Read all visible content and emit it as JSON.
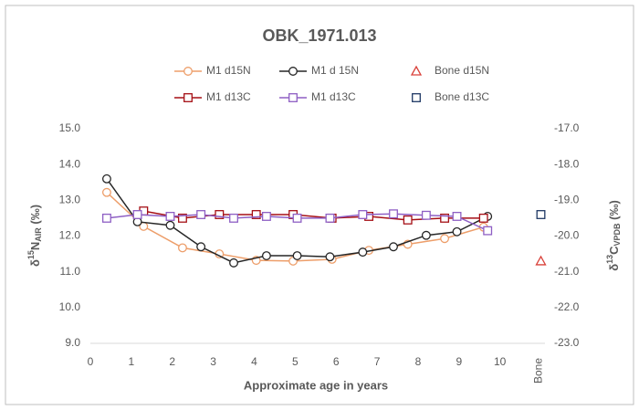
{
  "chart_data": {
    "type": "line",
    "title": "OBK_1971.013",
    "x_label": "Approximate age in years",
    "y_label": {
      "prefix": "δ",
      "sup": "15",
      "main": "N",
      "sub": "AIR",
      "suffix": " (‰)"
    },
    "y2_label": {
      "prefix": "δ",
      "sup": "13",
      "main": "C",
      "sub": "VPDB",
      "suffix": " (‰)"
    },
    "xlim": [
      0,
      11.1
    ],
    "xticks": [
      0,
      1,
      2,
      3,
      4,
      5,
      6,
      7,
      8,
      9,
      10,
      {
        "value": 11,
        "label": "Bone"
      }
    ],
    "ylim": [
      9,
      15
    ],
    "yticks": [
      {
        "value": 9,
        "label": "9.0"
      },
      {
        "value": 10,
        "label": "10.0"
      },
      {
        "value": 11,
        "label": "11.0"
      },
      {
        "value": 12,
        "label": "12.0"
      },
      {
        "value": 13,
        "label": "13.0"
      },
      {
        "value": 14,
        "label": "14.0"
      },
      {
        "value": 15,
        "label": "15.0"
      }
    ],
    "y2lim": [
      -23,
      -17
    ],
    "y2ticks": [
      {
        "value": -23,
        "label": "-23.0"
      },
      {
        "value": -22,
        "label": "-22.0"
      },
      {
        "value": -21,
        "label": "-21.0"
      },
      {
        "value": -20,
        "label": "-20.0"
      },
      {
        "value": -19,
        "label": "-19.0"
      },
      {
        "value": -18,
        "label": "-18.0"
      },
      {
        "value": -17,
        "label": "-17.0"
      }
    ],
    "grid": false,
    "series": [
      {
        "name": "M1 d15N",
        "color": "#ed9e6a",
        "marker": "circle",
        "line": true,
        "x": [
          0.4,
          1.3,
          2.25,
          3.15,
          4.05,
          4.95,
          5.9,
          6.8,
          7.75,
          8.65,
          9.6
        ],
        "values": [
          13.22,
          12.27,
          11.67,
          11.5,
          11.32,
          11.3,
          11.35,
          11.6,
          11.77,
          11.93,
          12.25
        ]
      },
      {
        "name": "M1 d 15N",
        "color": "#262626",
        "marker": "circle",
        "line": true,
        "x": [
          0.4,
          1.15,
          1.95,
          2.7,
          3.5,
          4.3,
          5.05,
          5.85,
          6.65,
          7.4,
          8.2,
          8.95,
          9.7
        ],
        "values": [
          13.6,
          12.4,
          12.3,
          11.7,
          11.25,
          11.45,
          11.45,
          11.42,
          11.55,
          11.7,
          12.02,
          12.12,
          12.55
        ]
      },
      {
        "name": "Bone d15N",
        "color": "#d9413a",
        "marker": "triangle",
        "line": false,
        "x": [
          11
        ],
        "values": [
          11.3
        ]
      },
      {
        "name": "M1 d13C",
        "color": "#a50f15",
        "marker": "square",
        "line": true,
        "axis": "y2",
        "x": [
          1.3,
          2.25,
          3.15,
          4.05,
          4.95,
          5.9,
          6.8,
          7.75,
          8.65,
          9.6
        ],
        "values": [
          -19.3,
          -19.5,
          -19.4,
          -19.4,
          -19.4,
          -19.5,
          -19.45,
          -19.55,
          -19.5,
          -19.5
        ]
      },
      {
        "name": "M1 d13C",
        "color": "#8e5fc4",
        "marker": "square",
        "line": true,
        "axis": "y2",
        "x": [
          0.4,
          1.15,
          1.95,
          2.7,
          3.5,
          4.3,
          5.05,
          5.85,
          6.65,
          7.4,
          8.2,
          8.95,
          9.7
        ],
        "values": [
          -19.5,
          -19.4,
          -19.45,
          -19.4,
          -19.5,
          -19.45,
          -19.5,
          -19.5,
          -19.4,
          -19.38,
          -19.42,
          -19.45,
          -19.85
        ]
      },
      {
        "name": "Bone d13C",
        "color": "#1f3864",
        "marker": "square",
        "line": false,
        "axis": "y2",
        "x": [
          11
        ],
        "values": [
          -19.4
        ]
      }
    ]
  }
}
